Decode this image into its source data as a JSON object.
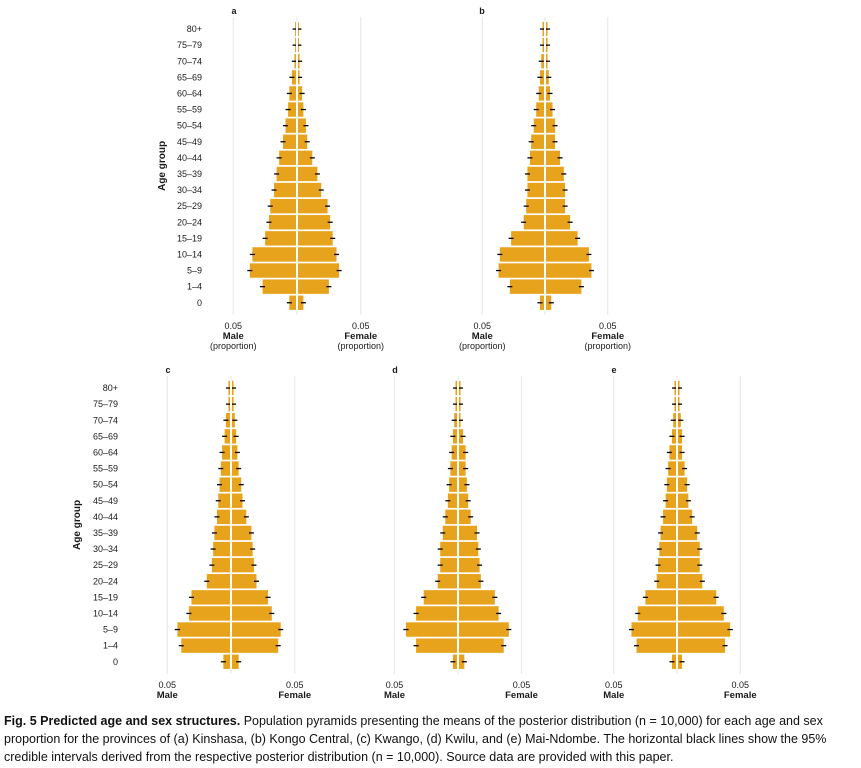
{
  "chart_data": {
    "type": "population-pyramid",
    "bar_color": "#e8a31c",
    "ci_color": "#000000",
    "grid": true,
    "age_groups": [
      "0",
      "1–4",
      "5–9",
      "10–14",
      "15–19",
      "20–24",
      "25–29",
      "30–34",
      "35–39",
      "40–44",
      "45–49",
      "50–54",
      "55–59",
      "60–64",
      "65–69",
      "70–74",
      "75–79",
      "80+"
    ],
    "yaxis_title": "Age group",
    "xaxis_tick_label": "0.05",
    "male_label": "Male",
    "female_label": "Female",
    "unit_label": "(proportion)",
    "tick_value": 0.05,
    "panels": [
      {
        "label": "a",
        "male": [
          0.006,
          0.027,
          0.037,
          0.035,
          0.025,
          0.022,
          0.021,
          0.018,
          0.016,
          0.014,
          0.011,
          0.009,
          0.007,
          0.006,
          0.004,
          0.002,
          0.0015,
          0.0015
        ],
        "female": [
          0.005,
          0.025,
          0.033,
          0.031,
          0.028,
          0.026,
          0.024,
          0.019,
          0.016,
          0.012,
          0.008,
          0.007,
          0.005,
          0.004,
          0.002,
          0.002,
          0.0015,
          0.0015
        ]
      },
      {
        "label": "b",
        "male": [
          0.004,
          0.028,
          0.037,
          0.036,
          0.027,
          0.017,
          0.015,
          0.014,
          0.014,
          0.012,
          0.011,
          0.009,
          0.007,
          0.005,
          0.004,
          0.003,
          0.002,
          0.002
        ],
        "female": [
          0.005,
          0.029,
          0.037,
          0.035,
          0.026,
          0.02,
          0.016,
          0.016,
          0.015,
          0.012,
          0.008,
          0.008,
          0.006,
          0.004,
          0.003,
          0.002,
          0.002,
          0.002
        ]
      },
      {
        "label": "c",
        "male": [
          0.006,
          0.039,
          0.042,
          0.033,
          0.031,
          0.019,
          0.015,
          0.014,
          0.013,
          0.011,
          0.01,
          0.009,
          0.008,
          0.007,
          0.005,
          0.004,
          0.002,
          0.002
        ],
        "female": [
          0.006,
          0.037,
          0.039,
          0.032,
          0.029,
          0.02,
          0.018,
          0.017,
          0.016,
          0.012,
          0.009,
          0.008,
          0.006,
          0.005,
          0.004,
          0.003,
          0.002,
          0.002
        ]
      },
      {
        "label": "d",
        "male": [
          0.004,
          0.033,
          0.041,
          0.033,
          0.027,
          0.016,
          0.014,
          0.014,
          0.012,
          0.01,
          0.008,
          0.007,
          0.006,
          0.005,
          0.004,
          0.003,
          0.002,
          0.002
        ],
        "female": [
          0.005,
          0.036,
          0.04,
          0.032,
          0.029,
          0.018,
          0.017,
          0.016,
          0.015,
          0.01,
          0.008,
          0.007,
          0.006,
          0.006,
          0.004,
          0.002,
          0.002,
          0.002
        ]
      },
      {
        "label": "e",
        "male": [
          0.004,
          0.032,
          0.036,
          0.031,
          0.025,
          0.016,
          0.015,
          0.014,
          0.013,
          0.011,
          0.009,
          0.008,
          0.007,
          0.006,
          0.004,
          0.003,
          0.002,
          0.002
        ],
        "female": [
          0.004,
          0.038,
          0.042,
          0.037,
          0.031,
          0.02,
          0.018,
          0.018,
          0.016,
          0.012,
          0.009,
          0.008,
          0.006,
          0.004,
          0.004,
          0.003,
          0.002,
          0.002
        ]
      }
    ]
  },
  "caption": {
    "title": "Fig. 5 Predicted age and sex structures.",
    "text": "Population pyramids presenting the means of the posterior distribution (n = 10,000) for each age and sex proportion for the provinces of (a) Kinshasa, (b) Kongo Central, (c) Kwango, (d) Kwilu, and (e) Mai-Ndombe. The horizontal black lines show the 95% credible intervals derived from the respective posterior distribution (n = 10,000). Source data are provided with this paper."
  }
}
